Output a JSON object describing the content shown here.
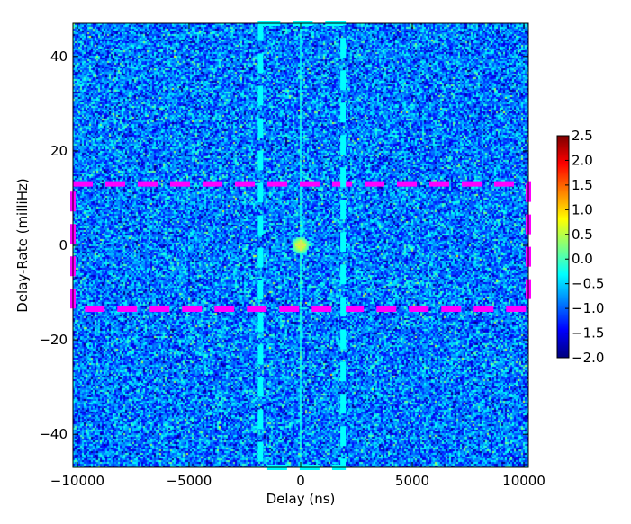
{
  "chart_data": {
    "type": "heatmap",
    "title": "",
    "xlabel": "Delay (ns)",
    "ylabel": "Delay-Rate (milliHz)",
    "xlim": [
      -10200,
      10200
    ],
    "ylim": [
      47,
      -47
    ],
    "y_axis_inverted": true,
    "x_ticks": [
      -10000,
      -5000,
      0,
      5000,
      10000
    ],
    "x_tick_labels": [
      "−10000",
      "−5000",
      "0",
      "5000",
      "10000"
    ],
    "y_ticks": [
      -40,
      -20,
      0,
      20,
      40
    ],
    "y_tick_labels": [
      "−40",
      "−20",
      "0",
      "20",
      "40"
    ],
    "grid": false,
    "colormap": "jet",
    "colorbar": {
      "min": -2.0,
      "max": 2.5,
      "ticks": [
        2.5,
        2.0,
        1.5,
        1.0,
        0.5,
        0.0,
        -0.5,
        -1.0,
        -1.5,
        -2.0
      ],
      "tick_labels": [
        "2.5",
        "2.0",
        "1.5",
        "1.0",
        "0.5",
        "0.0",
        "−0.5",
        "−1.0",
        "−1.5",
        "−2.0"
      ]
    },
    "background_noise": {
      "mean": -0.9,
      "spread": 0.45
    },
    "peak": {
      "delay": 0,
      "rate": 0,
      "value": 1.0
    },
    "peak_ridge": {
      "delay": 0,
      "value": -0.3
    },
    "windows": [
      {
        "name": "",
        "color": "#ff00ff",
        "style": "dashed",
        "delay_range": [
          -10200,
          10200
        ],
        "rate_range": [
          -13.5,
          13
        ]
      },
      {
        "name": "",
        "color": "#00ffff",
        "style": "dashed",
        "delay_range": [
          -1800,
          1900
        ],
        "rate_range": [
          -47,
          47
        ]
      }
    ]
  }
}
